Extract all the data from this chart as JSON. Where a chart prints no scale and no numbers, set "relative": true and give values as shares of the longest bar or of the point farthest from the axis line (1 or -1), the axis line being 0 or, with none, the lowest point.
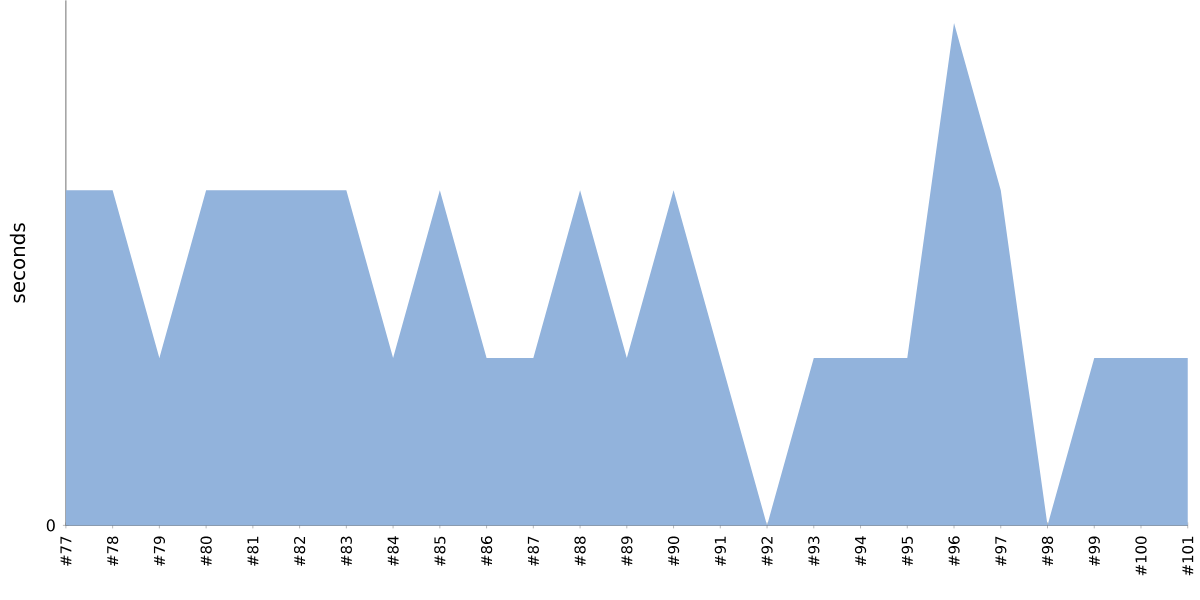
{
  "chart_data": {
    "type": "area",
    "relative": true,
    "ylabel": "seconds",
    "annotations": [
      "0"
    ],
    "categories": [
      "#77",
      "#78",
      "#79",
      "#80",
      "#81",
      "#82",
      "#83",
      "#84",
      "#85",
      "#86",
      "#87",
      "#88",
      "#89",
      "#90",
      "#91",
      "#92",
      "#93",
      "#94",
      "#95",
      "#96",
      "#97",
      "#98",
      "#99",
      "#100",
      "#101"
    ],
    "series": [
      {
        "color": "#92b3dc",
        "values": [
          0.667,
          0.667,
          0.333,
          0.667,
          0.667,
          0.667,
          0.667,
          0.333,
          0.667,
          0.333,
          0.333,
          0.667,
          0.333,
          0.667,
          0.333,
          0,
          0.333,
          0.333,
          0.333,
          1,
          0.667,
          0,
          0.333,
          0.333,
          0.333
        ]
      }
    ]
  }
}
